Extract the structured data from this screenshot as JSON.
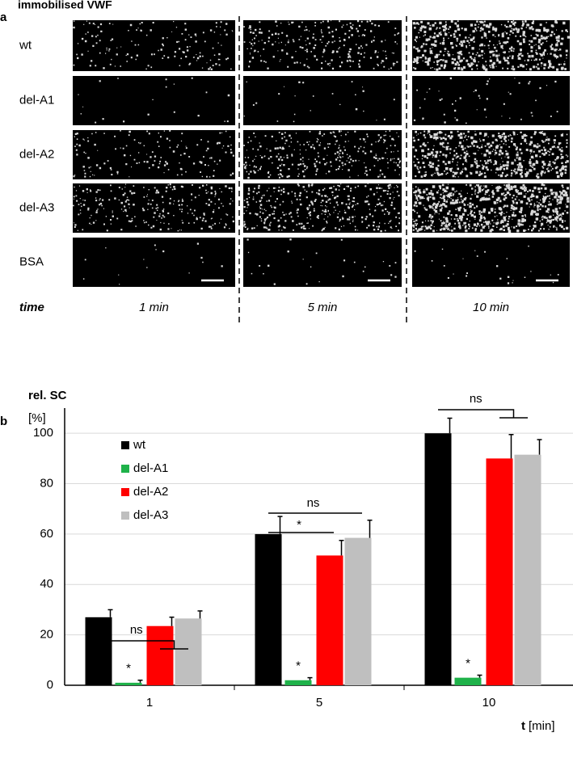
{
  "panel_a": {
    "label": "a",
    "title": "immobilised VWF",
    "rows": [
      "wt",
      "del-A1",
      "del-A2",
      "del-A3",
      "BSA"
    ],
    "time_label": "time",
    "columns": [
      "1 min",
      "5 min",
      "10 min"
    ]
  },
  "chart_data": {
    "type": "bar",
    "panel_label": "b",
    "y_label": "rel. SC",
    "y_unit": "[%]",
    "x_label": "t",
    "x_unit": "[min]",
    "categories": [
      "1",
      "5",
      "10"
    ],
    "series": [
      {
        "name": "wt",
        "color": "#000000",
        "values": [
          27,
          60,
          100
        ],
        "errors": [
          3,
          7,
          6
        ]
      },
      {
        "name": "del-A1",
        "color": "#1fb24a",
        "values": [
          1,
          2,
          3
        ],
        "errors": [
          1,
          1,
          1
        ]
      },
      {
        "name": "del-A2",
        "color": "#ff0000",
        "values": [
          23.5,
          51.5,
          90
        ],
        "errors": [
          3.5,
          6,
          9.5
        ]
      },
      {
        "name": "del-A3",
        "color": "#bfbfbf",
        "values": [
          26.5,
          58.5,
          91.5
        ],
        "errors": [
          3,
          7,
          6
        ]
      }
    ],
    "ylim": [
      0,
      110
    ],
    "yticks": [
      0,
      20,
      40,
      60,
      80,
      100
    ],
    "grid": true,
    "legend": "upper left",
    "annotations": [
      "ns",
      "*",
      "ns",
      "*",
      "*",
      "ns",
      "*"
    ]
  }
}
